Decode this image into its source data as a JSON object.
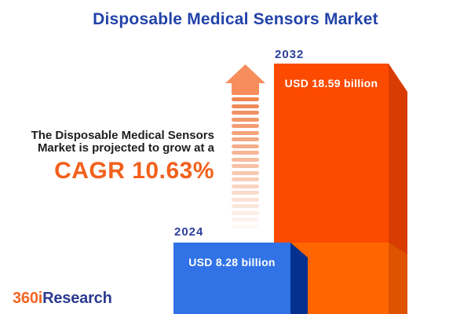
{
  "title": "Disposable Medical Sensors Market",
  "summary": {
    "line1": "The Disposable Medical Sensors",
    "line2": "Market is projected to grow at a",
    "cagr": "CAGR 10.63%"
  },
  "logo": {
    "prefix": "360i",
    "suffix": "Research"
  },
  "chart_data": {
    "type": "bar",
    "title": "Disposable Medical Sensors Market",
    "categories": [
      "2024",
      "2032"
    ],
    "values": [
      8.28,
      18.59
    ],
    "unit": "USD billion",
    "value_labels": [
      "USD 8.28 billion",
      "USD 18.59 billion"
    ],
    "cagr_percent": 10.63,
    "legend": "none",
    "grid": false,
    "colors": {
      "bar_2024_face": "#3173E6",
      "bar_2024_side": "#04308F",
      "bar_2032_face_upper": "#FC4A00",
      "bar_2032_face_lower": "#FF6600",
      "bar_2032_side_upper": "#D83C00",
      "bar_2032_side_lower": "#DD5300",
      "accent_orange": "#F2601C",
      "title_blue": "#2243A8",
      "year_label_blue": "#2B3F9C",
      "arrow_orange": "#F78D5C"
    }
  }
}
